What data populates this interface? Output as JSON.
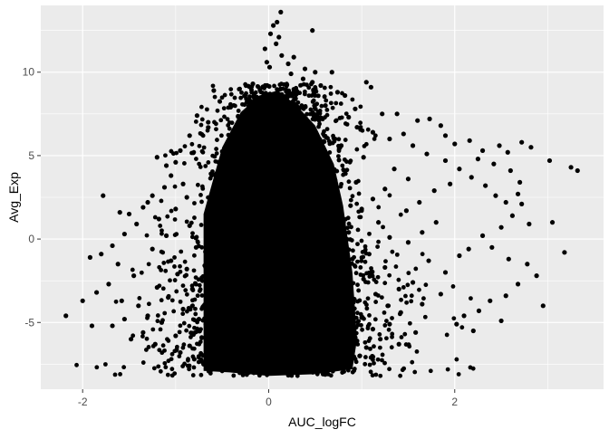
{
  "chart_data": {
    "type": "scatter",
    "xlabel": "AUC_logFC",
    "ylabel": "Avg_Exp",
    "xlim": [
      -2.45,
      3.6
    ],
    "ylim": [
      -9.0,
      14.0
    ],
    "x_ticks": [
      -2,
      0,
      2
    ],
    "x_tick_labels": [
      "-2",
      "0",
      "2"
    ],
    "y_ticks": [
      -5,
      0,
      5,
      10
    ],
    "y_tick_labels": [
      "-5",
      "0",
      "5",
      "10"
    ],
    "grid": true,
    "legend": "none",
    "colors": {
      "panel": "#EBEBEB",
      "grid": "#FFFFFF",
      "point": "#000000",
      "text": "#4D4D4D",
      "axis_title": "#000000"
    },
    "dense_region": {
      "description_values": "bulk of points forming a bell-shaped mass centred near x=0",
      "outline": [
        [
          -0.7,
          -7.9
        ],
        [
          -0.7,
          1.5
        ],
        [
          -0.5,
          5.5
        ],
        [
          -0.3,
          7.6
        ],
        [
          -0.1,
          8.6
        ],
        [
          0.1,
          8.9
        ],
        [
          0.3,
          8.0
        ],
        [
          0.5,
          6.8
        ],
        [
          0.7,
          4.5
        ],
        [
          0.8,
          2.0
        ],
        [
          0.9,
          -2.0
        ],
        [
          0.95,
          -6.0
        ],
        [
          0.9,
          -7.8
        ],
        [
          0.5,
          -8.1
        ],
        [
          0.0,
          -8.2
        ],
        [
          -0.4,
          -8.0
        ]
      ]
    },
    "points": [
      [
        0.13,
        13.6
      ],
      [
        0.09,
        13.0
      ],
      [
        0.05,
        12.8
      ],
      [
        0.47,
        12.5
      ],
      [
        0.02,
        12.3
      ],
      [
        0.11,
        12.1
      ],
      [
        0.08,
        11.7
      ],
      [
        -0.04,
        11.4
      ],
      [
        0.14,
        11.0
      ],
      [
        0.27,
        10.9
      ],
      [
        -0.02,
        10.6
      ],
      [
        0.01,
        10.3
      ],
      [
        0.21,
        10.5
      ],
      [
        0.39,
        10.2
      ],
      [
        0.5,
        10.0
      ],
      [
        0.68,
        10.0
      ],
      [
        0.74,
        8.8
      ],
      [
        0.47,
        9.4
      ],
      [
        0.56,
        9.2
      ],
      [
        0.82,
        8.6
      ],
      [
        1.05,
        9.4
      ],
      [
        1.1,
        9.1
      ],
      [
        0.93,
        7.8
      ],
      [
        -0.59,
        8.9
      ],
      [
        0.37,
        9.6
      ],
      [
        0.24,
        9.9
      ],
      [
        -0.17,
        9.3
      ],
      [
        0.61,
        8.0
      ],
      [
        -0.41,
        7.9
      ],
      [
        -0.77,
        7.4
      ],
      [
        0.86,
        7.3
      ],
      [
        1.22,
        7.5
      ],
      [
        1.38,
        7.5
      ],
      [
        1.6,
        7.1
      ],
      [
        1.73,
        7.2
      ],
      [
        1.85,
        6.8
      ],
      [
        1.9,
        6.2
      ],
      [
        2.0,
        5.7
      ],
      [
        2.16,
        5.9
      ],
      [
        2.3,
        5.3
      ],
      [
        2.48,
        5.6
      ],
      [
        2.57,
        5.2
      ],
      [
        2.72,
        5.8
      ],
      [
        2.82,
        5.5
      ],
      [
        3.02,
        4.7
      ],
      [
        3.25,
        4.3
      ],
      [
        3.32,
        4.1
      ],
      [
        2.42,
        4.5
      ],
      [
        2.25,
        4.8
      ],
      [
        2.6,
        4.1
      ],
      [
        1.45,
        6.3
      ],
      [
        1.55,
        5.6
      ],
      [
        1.12,
        6.4
      ],
      [
        1.3,
        6.0
      ],
      [
        1.7,
        5.1
      ],
      [
        1.9,
        4.7
      ],
      [
        2.05,
        4.2
      ],
      [
        2.18,
        3.7
      ],
      [
        2.33,
        3.2
      ],
      [
        2.44,
        2.6
      ],
      [
        2.55,
        2.2
      ],
      [
        2.68,
        2.7
      ],
      [
        2.72,
        2.1
      ],
      [
        2.62,
        1.4
      ],
      [
        2.8,
        0.9
      ],
      [
        2.5,
        0.7
      ],
      [
        2.3,
        0.2
      ],
      [
        2.4,
        -0.5
      ],
      [
        2.15,
        -0.6
      ],
      [
        2.05,
        -1.0
      ],
      [
        2.58,
        -1.2
      ],
      [
        2.78,
        -1.5
      ],
      [
        2.88,
        -2.2
      ],
      [
        2.68,
        -2.7
      ],
      [
        2.55,
        -3.4
      ],
      [
        2.38,
        -3.7
      ],
      [
        2.26,
        -4.3
      ],
      [
        2.1,
        -4.6
      ],
      [
        2.02,
        -5.1
      ],
      [
        2.2,
        -5.5
      ],
      [
        2.5,
        -4.9
      ],
      [
        2.95,
        -4.0
      ],
      [
        3.05,
        1.0
      ],
      [
        3.18,
        -0.8
      ],
      [
        2.7,
        3.4
      ],
      [
        1.95,
        3.3
      ],
      [
        1.78,
        2.9
      ],
      [
        1.62,
        2.2
      ],
      [
        1.48,
        1.7
      ],
      [
        1.8,
        1.0
      ],
      [
        1.65,
        0.4
      ],
      [
        1.5,
        -0.2
      ],
      [
        1.72,
        -1.3
      ],
      [
        1.9,
        -2.0
      ],
      [
        1.55,
        -2.6
      ],
      [
        1.4,
        -3.0
      ],
      [
        1.85,
        -3.3
      ],
      [
        1.65,
        -3.9
      ],
      [
        1.42,
        -4.4
      ],
      [
        1.3,
        -5.1
      ],
      [
        1.58,
        -5.6
      ],
      [
        1.2,
        -6.0
      ],
      [
        1.05,
        -6.5
      ],
      [
        1.1,
        -7.1
      ],
      [
        0.98,
        -7.0
      ],
      [
        1.35,
        4.2
      ],
      [
        1.5,
        3.6
      ],
      [
        1.25,
        3.0
      ],
      [
        1.12,
        2.4
      ],
      [
        1.0,
        1.8
      ],
      [
        1.18,
        1.0
      ],
      [
        1.3,
        0.1
      ],
      [
        1.08,
        -0.9
      ],
      [
        1.25,
        -1.7
      ],
      [
        1.02,
        -2.4
      ],
      [
        1.15,
        -3.3
      ],
      [
        1.28,
        -4.0
      ],
      [
        1.0,
        -4.7
      ],
      [
        1.12,
        -5.4
      ],
      [
        0.95,
        -6.1
      ],
      [
        -0.65,
        7.0
      ],
      [
        -0.85,
        6.2
      ],
      [
        -0.95,
        5.3
      ],
      [
        -1.0,
        4.6
      ],
      [
        -1.05,
        3.8
      ],
      [
        -1.12,
        3.1
      ],
      [
        -1.25,
        2.6
      ],
      [
        -1.35,
        1.9
      ],
      [
        -1.5,
        1.5
      ],
      [
        -1.42,
        0.9
      ],
      [
        -1.55,
        0.3
      ],
      [
        -1.68,
        -0.4
      ],
      [
        -1.8,
        -0.9
      ],
      [
        -1.62,
        -1.5
      ],
      [
        -1.45,
        -2.2
      ],
      [
        -1.72,
        -2.7
      ],
      [
        -1.85,
        -3.2
      ],
      [
        -1.58,
        -3.7
      ],
      [
        -1.4,
        -4.0
      ],
      [
        -1.3,
        -4.6
      ],
      [
        -1.55,
        -4.8
      ],
      [
        -1.68,
        -5.2
      ],
      [
        -1.9,
        -5.2
      ],
      [
        -2.18,
        -4.6
      ],
      [
        -2.0,
        -3.7
      ],
      [
        -1.92,
        -1.1
      ],
      [
        -1.78,
        2.6
      ],
      [
        -1.6,
        1.6
      ],
      [
        -1.3,
        2.2
      ],
      [
        -1.2,
        4.9
      ],
      [
        -1.1,
        4.4
      ],
      [
        -0.92,
        3.3
      ],
      [
        -0.88,
        2.5
      ],
      [
        -1.0,
        1.8
      ],
      [
        -1.18,
        1.2
      ],
      [
        -1.1,
        0.2
      ],
      [
        -1.25,
        -0.6
      ],
      [
        -1.05,
        -1.3
      ],
      [
        -0.98,
        -2.1
      ],
      [
        -1.2,
        -2.9
      ],
      [
        -1.08,
        -3.5
      ],
      [
        -0.92,
        -4.2
      ],
      [
        -1.15,
        -5.0
      ],
      [
        -1.0,
        -5.8
      ],
      [
        -0.85,
        -6.4
      ],
      [
        -0.95,
        -6.8
      ],
      [
        -0.8,
        -7.2
      ],
      [
        -1.35,
        -5.6
      ],
      [
        -1.48,
        -6.0
      ],
      [
        -1.22,
        -6.3
      ],
      [
        -0.85,
        0.8
      ],
      [
        -0.78,
        -0.5
      ],
      [
        -0.88,
        -1.8
      ],
      [
        -0.82,
        -3.0
      ],
      [
        -0.75,
        -4.8
      ],
      [
        -0.72,
        -5.9
      ],
      [
        -0.7,
        -7.5
      ],
      [
        0.82,
        -6.5
      ],
      [
        0.88,
        -5.0
      ],
      [
        0.92,
        -3.6
      ],
      [
        0.9,
        -1.2
      ],
      [
        0.86,
        0.4
      ],
      [
        0.88,
        2.0
      ],
      [
        0.94,
        3.4
      ],
      [
        1.02,
        4.9
      ],
      [
        0.78,
        5.6
      ],
      [
        0.95,
        6.7
      ],
      [
        1.4,
        -6.3
      ],
      [
        0.6,
        -7.9
      ],
      [
        -0.5,
        -7.9
      ]
    ],
    "dense_fill": {
      "center_x": 0.0,
      "n": 2600
    }
  }
}
